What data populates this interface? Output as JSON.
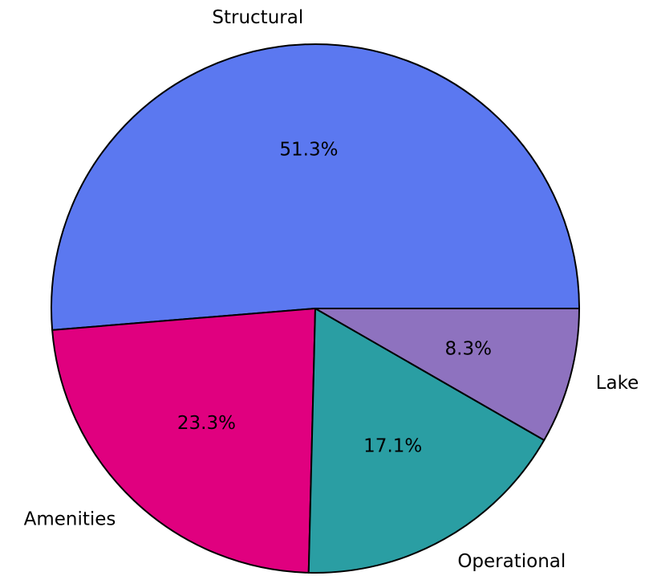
{
  "chart_data": {
    "type": "pie",
    "categories": [
      "Structural",
      "Amenities",
      "Operational",
      "Lake"
    ],
    "values": [
      51.3,
      23.3,
      17.1,
      8.3
    ],
    "value_labels": [
      "51.3%",
      "23.3%",
      "17.1%",
      "8.3%"
    ],
    "colors": [
      "#5b78f0",
      "#e0007f",
      "#2a9ea3",
      "#8e72bf"
    ]
  }
}
